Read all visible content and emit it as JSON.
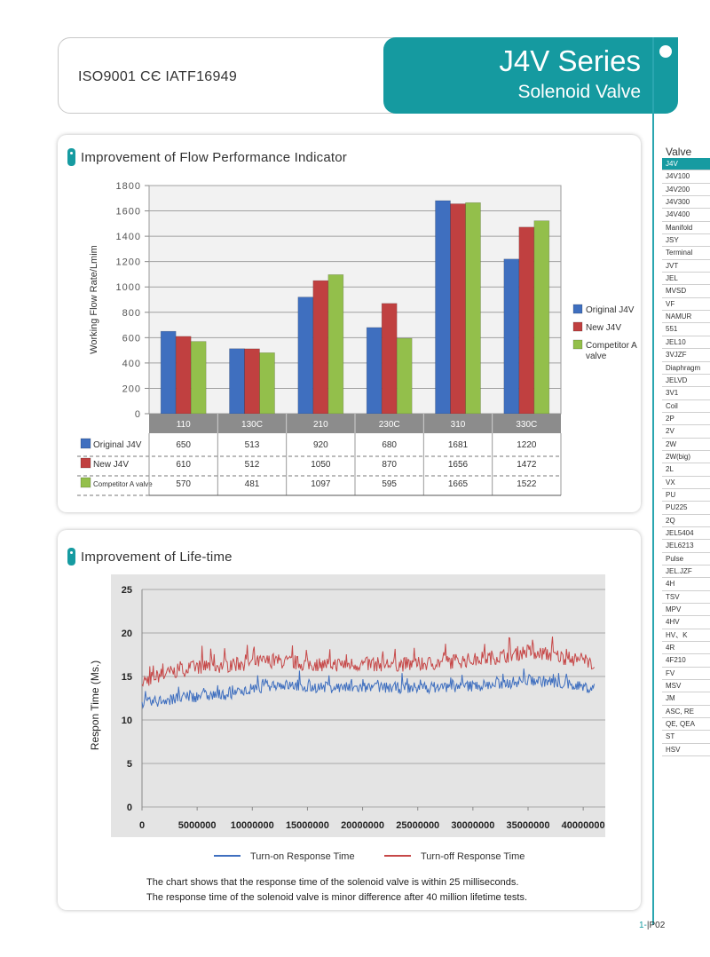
{
  "header": {
    "certifications": "ISO9001  CЄ  IATF16949",
    "series_title": "J4V Series",
    "series_subtitle": "Solenoid Valve"
  },
  "sidebar": {
    "heading": "Valve",
    "active_item": "J4V",
    "items": [
      "J4V",
      "J4V100",
      "J4V200",
      "J4V300",
      "J4V400",
      "Manifold",
      "JSY",
      "Terminal",
      "JVT",
      "JEL",
      "MVSD",
      "VF",
      "NAMUR",
      "551",
      "JEL10",
      "3VJZF",
      "Diaphragm",
      "JELVD",
      "3V1",
      "Coil",
      "2P",
      "2V",
      "2W",
      "2W(big)",
      "2L",
      "VX",
      "PU",
      "PU225",
      "2Q",
      "JEL5404",
      "JEL6213",
      "Pulse",
      "JEL.JZF",
      "4H",
      "TSV",
      "MPV",
      "4HV",
      "HV、K",
      "4R",
      "4F210",
      "FV",
      "MSV",
      "JM",
      "ASC, RE",
      "QE, QEA",
      "ST",
      "HSV"
    ]
  },
  "section1": {
    "title": "Improvement of Flow Performance Indicator"
  },
  "section2": {
    "title": "Improvement of Life-time"
  },
  "colors": {
    "accent": "#169ba1",
    "series_blue": "#3f6fbf",
    "series_red": "#c04040",
    "series_green": "#93bf4b",
    "turn_on": "#3f6fbf",
    "turn_off": "#c64848"
  },
  "chart_data": [
    {
      "type": "bar",
      "title": "Improvement of Flow Performance Indicator",
      "xlabel": "",
      "ylabel": "Working Flow Rate/Lmim",
      "ylim": [
        0,
        1800
      ],
      "yticks": [
        0,
        200,
        400,
        600,
        800,
        1000,
        1200,
        1400,
        1600,
        1800
      ],
      "categories": [
        "110",
        "130C",
        "210",
        "230C",
        "310",
        "330C"
      ],
      "grid": true,
      "legend_position": "right",
      "legend_labels": [
        "Original J4V",
        "New J4V",
        "Competitor A valve"
      ],
      "series": [
        {
          "name": "Original J4V",
          "table_label": "Original J4V",
          "values": [
            650,
            513,
            920,
            680,
            1681,
            1220
          ]
        },
        {
          "name": "New J4V",
          "table_label": "New J4V",
          "values": [
            610,
            512,
            1050,
            870,
            1656,
            1472
          ]
        },
        {
          "name": "Competitor A valve",
          "table_label": "Competitor A valve",
          "values": [
            570,
            481,
            1097,
            595,
            1665,
            1522
          ]
        }
      ]
    },
    {
      "type": "line",
      "title": "Improvement of Life-time",
      "xlabel": "",
      "ylabel": "Respon Time (Ms.)",
      "xlim": [
        0,
        42000000
      ],
      "ylim": [
        0,
        25
      ],
      "xticks": [
        "0",
        "5000000",
        "10000000",
        "15000000",
        "20000000",
        "25000000",
        "30000000",
        "35000000",
        "40000000"
      ],
      "yticks": [
        "0",
        "5",
        "10",
        "15",
        "20",
        "25"
      ],
      "grid": true,
      "legend_position": "bottom",
      "series": [
        {
          "name": "Turn-on Response Time",
          "x": [
            0,
            2000000,
            5000000,
            8000000,
            10000000,
            12000000,
            15000000,
            20000000,
            25000000,
            30000000,
            33000000,
            35000000,
            37000000,
            39000000,
            41000000
          ],
          "y": [
            11.8,
            12.3,
            12.7,
            13.0,
            13.4,
            14.1,
            13.8,
            13.7,
            13.7,
            13.9,
            14.2,
            14.6,
            14.4,
            14.0,
            13.6
          ]
        },
        {
          "name": "Turn-off Response Time",
          "x": [
            0,
            2000000,
            5000000,
            8000000,
            10000000,
            12000000,
            15000000,
            20000000,
            25000000,
            30000000,
            33000000,
            35000000,
            37000000,
            39000000,
            41000000
          ],
          "y": [
            14.4,
            15.3,
            16.1,
            16.3,
            16.6,
            16.8,
            16.4,
            16.4,
            16.4,
            16.9,
            17.4,
            17.9,
            17.5,
            17.0,
            16.6
          ]
        }
      ]
    }
  ],
  "notes": {
    "line1": "The chart shows that the response time of the solenoid valve is within 25 milliseconds.",
    "line2": "The response time of the solenoid valve is minor difference after 40 million lifetime tests."
  },
  "page": {
    "prefix": "1-",
    "number": "|P02"
  }
}
